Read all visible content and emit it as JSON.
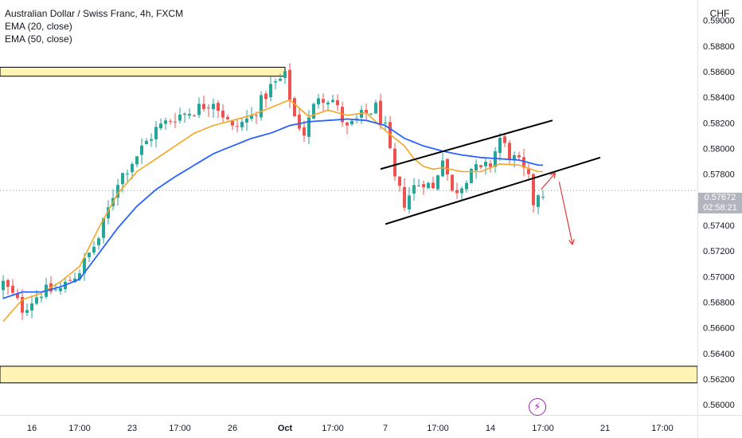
{
  "legend": {
    "title": "Australian Dollar / Swiss Franc, 4h, FXCM",
    "ema20": "EMA (20, close)",
    "ema50": "EMA (50, close)"
  },
  "currency_label": "CHF",
  "current_price": {
    "price": "0.57672",
    "countdown": "02:58:21"
  },
  "flash_icon": "lightning-icon",
  "colors": {
    "up": "#26a69a",
    "down": "#ef5350",
    "ema20": "#f5a623",
    "ema50": "#2962ff",
    "zone_fill": "#fff4b3",
    "arrow": "#e53935",
    "trendline": "#000000"
  },
  "chart_data": {
    "type": "candlestick",
    "timeframe": "4h",
    "ylim": [
      0.5592,
      0.5916
    ],
    "y_ticks": [
      "0.59000",
      "0.58800",
      "0.58600",
      "0.58400",
      "0.58200",
      "0.58000",
      "0.57800",
      "0.57600",
      "0.57400",
      "0.57200",
      "0.57000",
      "0.56800",
      "0.56600",
      "0.56400",
      "0.56200",
      "0.56000"
    ],
    "y_tick_values": [
      0.59,
      0.588,
      0.586,
      0.584,
      0.582,
      0.58,
      0.578,
      0.576,
      0.574,
      0.572,
      0.57,
      0.568,
      0.566,
      0.564,
      0.562,
      0.56
    ],
    "x_ticks": [
      "16",
      "17:00",
      "23",
      "17:00",
      "26",
      "Oct",
      "17:00",
      "7",
      "17:00",
      "14",
      "17:00",
      "21",
      "17:00"
    ],
    "x_tick_bars": [
      6,
      16,
      27,
      37,
      48,
      59,
      69,
      80,
      91,
      102,
      113,
      126,
      138
    ],
    "bars_count": 114,
    "candle_close_anchors": [
      [
        0,
        0.5695
      ],
      [
        4,
        0.5675
      ],
      [
        8,
        0.5688
      ],
      [
        12,
        0.569
      ],
      [
        16,
        0.5705
      ],
      [
        20,
        0.573
      ],
      [
        24,
        0.5775
      ],
      [
        28,
        0.5795
      ],
      [
        32,
        0.5815
      ],
      [
        36,
        0.5825
      ],
      [
        40,
        0.583
      ],
      [
        44,
        0.5838
      ],
      [
        48,
        0.5815
      ],
      [
        52,
        0.5825
      ],
      [
        56,
        0.5848
      ],
      [
        59,
        0.5856
      ],
      [
        61,
        0.5825
      ],
      [
        63,
        0.5812
      ],
      [
        66,
        0.5842
      ],
      [
        69,
        0.5838
      ],
      [
        72,
        0.5815
      ],
      [
        75,
        0.5825
      ],
      [
        78,
        0.5832
      ],
      [
        80,
        0.5815
      ],
      [
        82,
        0.5775
      ],
      [
        84,
        0.5758
      ],
      [
        86,
        0.577
      ],
      [
        88,
        0.5775
      ],
      [
        90,
        0.5768
      ],
      [
        92,
        0.5795
      ],
      [
        94,
        0.5765
      ],
      [
        96,
        0.5772
      ],
      [
        98,
        0.5785
      ],
      [
        100,
        0.5782
      ],
      [
        102,
        0.5788
      ],
      [
        104,
        0.5808
      ],
      [
        106,
        0.5795
      ],
      [
        108,
        0.5788
      ],
      [
        110,
        0.5775
      ],
      [
        111,
        0.5758
      ],
      [
        112,
        0.5766
      ]
    ],
    "ema20_anchors": [
      [
        0,
        0.5665
      ],
      [
        4,
        0.5682
      ],
      [
        8,
        0.5687
      ],
      [
        12,
        0.5696
      ],
      [
        16,
        0.5708
      ],
      [
        20,
        0.5738
      ],
      [
        24,
        0.5765
      ],
      [
        28,
        0.5782
      ],
      [
        32,
        0.5792
      ],
      [
        36,
        0.5802
      ],
      [
        40,
        0.5812
      ],
      [
        44,
        0.5818
      ],
      [
        48,
        0.5822
      ],
      [
        52,
        0.5826
      ],
      [
        56,
        0.5832
      ],
      [
        60,
        0.5838
      ],
      [
        64,
        0.5825
      ],
      [
        68,
        0.583
      ],
      [
        72,
        0.5826
      ],
      [
        76,
        0.5828
      ],
      [
        80,
        0.5814
      ],
      [
        84,
        0.5802
      ],
      [
        86,
        0.5792
      ],
      [
        88,
        0.5786
      ],
      [
        90,
        0.5784
      ],
      [
        92,
        0.5785
      ],
      [
        96,
        0.5782
      ],
      [
        100,
        0.5782
      ],
      [
        104,
        0.5788
      ],
      [
        108,
        0.5787
      ],
      [
        112,
        0.5782
      ]
    ],
    "ema50_anchors": [
      [
        0,
        0.5683
      ],
      [
        4,
        0.5688
      ],
      [
        8,
        0.5688
      ],
      [
        12,
        0.5692
      ],
      [
        16,
        0.5698
      ],
      [
        20,
        0.5718
      ],
      [
        24,
        0.5738
      ],
      [
        28,
        0.5755
      ],
      [
        32,
        0.5768
      ],
      [
        36,
        0.5778
      ],
      [
        40,
        0.5787
      ],
      [
        44,
        0.5796
      ],
      [
        48,
        0.5802
      ],
      [
        52,
        0.5808
      ],
      [
        56,
        0.5812
      ],
      [
        60,
        0.5818
      ],
      [
        64,
        0.5821
      ],
      [
        68,
        0.5822
      ],
      [
        72,
        0.5823
      ],
      [
        76,
        0.5822
      ],
      [
        80,
        0.5818
      ],
      [
        84,
        0.5808
      ],
      [
        88,
        0.5802
      ],
      [
        92,
        0.5798
      ],
      [
        96,
        0.5795
      ],
      [
        100,
        0.5793
      ],
      [
        104,
        0.5792
      ],
      [
        108,
        0.5791
      ],
      [
        112,
        0.5787
      ]
    ],
    "zones": [
      {
        "name": "resistance-zone",
        "from_bar": -1,
        "to_bar": 59,
        "y_top": 0.58635,
        "y_bottom": 0.58565
      },
      {
        "name": "support-zone",
        "from_bar": -1,
        "to_bar": 146,
        "y_top": 0.563,
        "y_bottom": 0.5617
      }
    ],
    "trendlines": [
      {
        "name": "channel-upper-line",
        "from": [
          79,
          0.5784
        ],
        "to": [
          115,
          0.5822
        ]
      },
      {
        "name": "channel-lower-line",
        "from": [
          80,
          0.5741
        ],
        "to": [
          125,
          0.5793
        ]
      }
    ],
    "projection_arrows": [
      {
        "name": "pullback-arrow",
        "from": [
          112.6,
          0.5768
        ],
        "to": [
          115.6,
          0.5781
        ]
      },
      {
        "name": "drop-arrow",
        "from": [
          116.4,
          0.5774
        ],
        "to": [
          119.2,
          0.5725
        ]
      }
    ]
  }
}
